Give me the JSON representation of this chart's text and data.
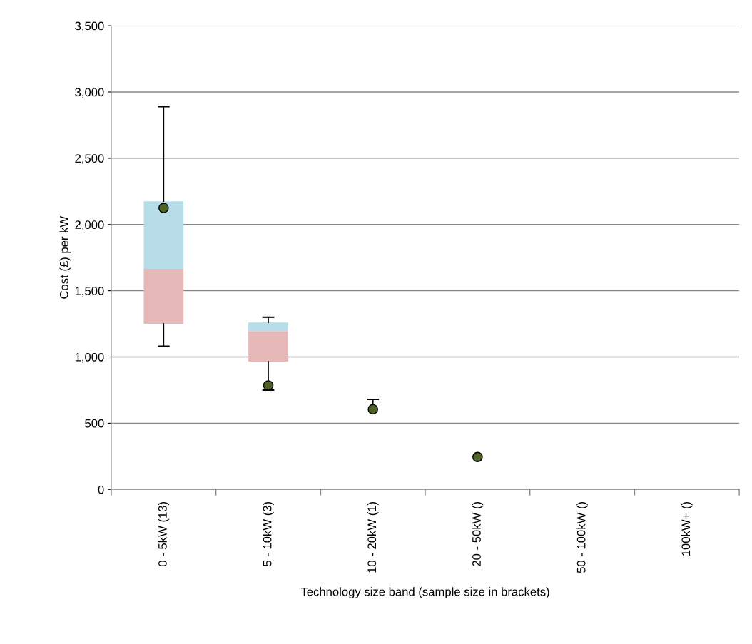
{
  "chart_data": {
    "type": "bar",
    "xlabel": "Technology size band (sample size in brackets)",
    "ylabel": "Cost (£) per kW",
    "categories": [
      "0 - 5kW (13)",
      "5 - 10kW (3)",
      "10 - 20kW (1)",
      "20 - 50kW ()",
      "50 - 100kW ()",
      "100kW+ ()"
    ],
    "series": [
      {
        "color": "#e6b9b8",
        "base": [
          1250,
          965,
          null,
          null,
          null,
          null
        ],
        "values": [
          415,
          230,
          null,
          null,
          null,
          null
        ],
        "errors": [
          [
            1080,
            1250
          ],
          [
            750,
            965
          ],
          null,
          null,
          null,
          null
        ]
      },
      {
        "color": "#b7dee8",
        "base": [
          1665,
          1195,
          null,
          null,
          null,
          null
        ],
        "values": [
          510,
          65,
          null,
          null,
          null,
          null
        ],
        "errors": [
          [
            2175,
            2890
          ],
          [
            1260,
            1300
          ],
          null,
          null,
          null,
          null
        ]
      },
      {
        "type": "scatter",
        "color": "#4f6228",
        "x": [
          "0 - 5kW (13)",
          "5 - 10kW (3)",
          "10 - 20kW (1)",
          "20 - 50kW ()",
          "50 - 100kW ()",
          "100kW+ ()"
        ],
        "values": [
          2125,
          785,
          605,
          245,
          null,
          null
        ],
        "errors": [
          null,
          null,
          [
            605,
            680
          ],
          null,
          null,
          null
        ]
      }
    ],
    "ylim": [
      0,
      3500
    ],
    "yticks": [
      0,
      500,
      {
        "value": 1000,
        "label": "1,000"
      },
      {
        "value": 1500,
        "label": "1,500"
      },
      {
        "value": 2000,
        "label": "2,000"
      },
      {
        "value": 2500,
        "label": "2,500"
      },
      {
        "value": 3000,
        "label": "3,000"
      },
      {
        "value": 3500,
        "label": "3,500"
      }
    ],
    "grid": "y",
    "legend": false,
    "marker": "circle"
  }
}
